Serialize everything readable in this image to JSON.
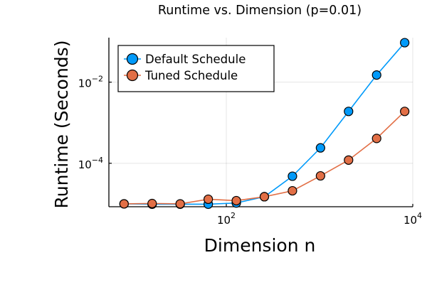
{
  "chart_data": {
    "type": "line",
    "title": "Runtime vs. Dimension (p=0.01)",
    "xlabel": "Dimension n",
    "ylabel": "Runtime (Seconds)",
    "x_scale": "log",
    "y_scale": "log",
    "xlim": [
      5.5,
      10000
    ],
    "ylim": [
      8.5e-06,
      0.125
    ],
    "grid": true,
    "legend": {
      "placement": "top-left"
    },
    "x_ticks": [
      {
        "base": "10",
        "exp": "2",
        "value": 100
      },
      {
        "base": "10",
        "exp": "4",
        "value": 10000
      }
    ],
    "y_ticks": [
      {
        "base": "10",
        "exp": "−2",
        "value": 0.01
      },
      {
        "base": "10",
        "exp": "−4",
        "value": 0.0001
      }
    ],
    "x": [
      8,
      16,
      32,
      64,
      128,
      256,
      512,
      1024,
      2048,
      4096,
      8192
    ],
    "series": [
      {
        "name": "Default Schedule",
        "color": "#009AFA",
        "values": [
          1e-05,
          9.8e-06,
          9.8e-06,
          9.8e-06,
          1.05e-05,
          1.5e-05,
          4.8e-05,
          0.00024,
          0.0019,
          0.015,
          0.094
        ]
      },
      {
        "name": "Tuned Schedule",
        "color": "#E26F46",
        "values": [
          1e-05,
          1.02e-05,
          1e-05,
          1.3e-05,
          1.2e-05,
          1.5e-05,
          2.1e-05,
          4.9e-05,
          0.00012,
          0.00041,
          0.0019
        ]
      }
    ]
  }
}
